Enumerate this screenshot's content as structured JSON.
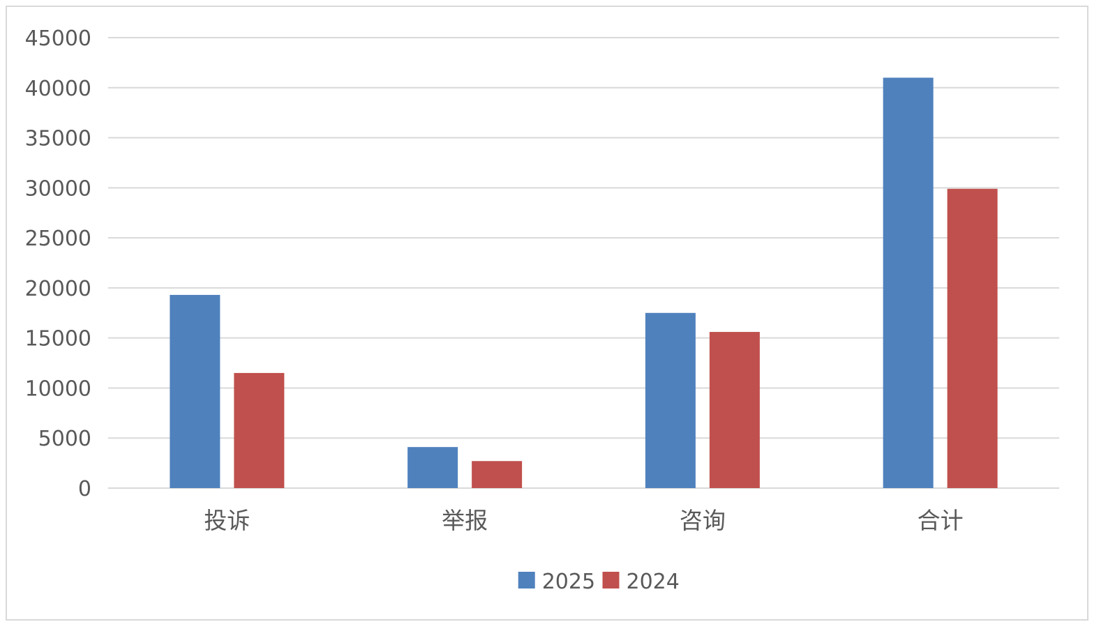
{
  "chart_data": {
    "type": "bar",
    "title": "",
    "xlabel": "",
    "ylabel": "",
    "categories": [
      "投诉",
      "举报",
      "咨询",
      "合计"
    ],
    "series": [
      {
        "name": "2025",
        "color": "#4f81bd",
        "values": [
          19300,
          4100,
          17500,
          41000
        ]
      },
      {
        "name": "2024",
        "color": "#c0504d",
        "values": [
          11500,
          2700,
          15600,
          29900
        ]
      }
    ],
    "ylim": [
      0,
      45000
    ],
    "yticks": [
      0,
      5000,
      10000,
      15000,
      20000,
      25000,
      30000,
      35000,
      40000,
      45000
    ],
    "grid": true,
    "gridline_color": "#d9d9d9",
    "legend_placement": "bottom-center"
  }
}
